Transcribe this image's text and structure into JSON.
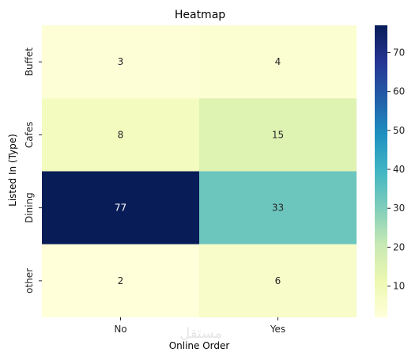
{
  "chart_data": {
    "type": "heatmap",
    "title": "Heatmap",
    "xlabel": "Online Order",
    "ylabel": "Listed In (Type)",
    "x_categories": [
      "No",
      "Yes"
    ],
    "y_categories": [
      "Buffet",
      "Cafes",
      "Dining",
      "other"
    ],
    "values": [
      [
        3,
        4
      ],
      [
        8,
        15
      ],
      [
        77,
        33
      ],
      [
        2,
        6
      ]
    ],
    "colormap": "YlGnBu",
    "colorbar": {
      "range": [
        2,
        77
      ],
      "ticks": [
        10,
        20,
        30,
        40,
        50,
        60,
        70
      ]
    },
    "annotated": true
  },
  "watermark": "مستقل"
}
